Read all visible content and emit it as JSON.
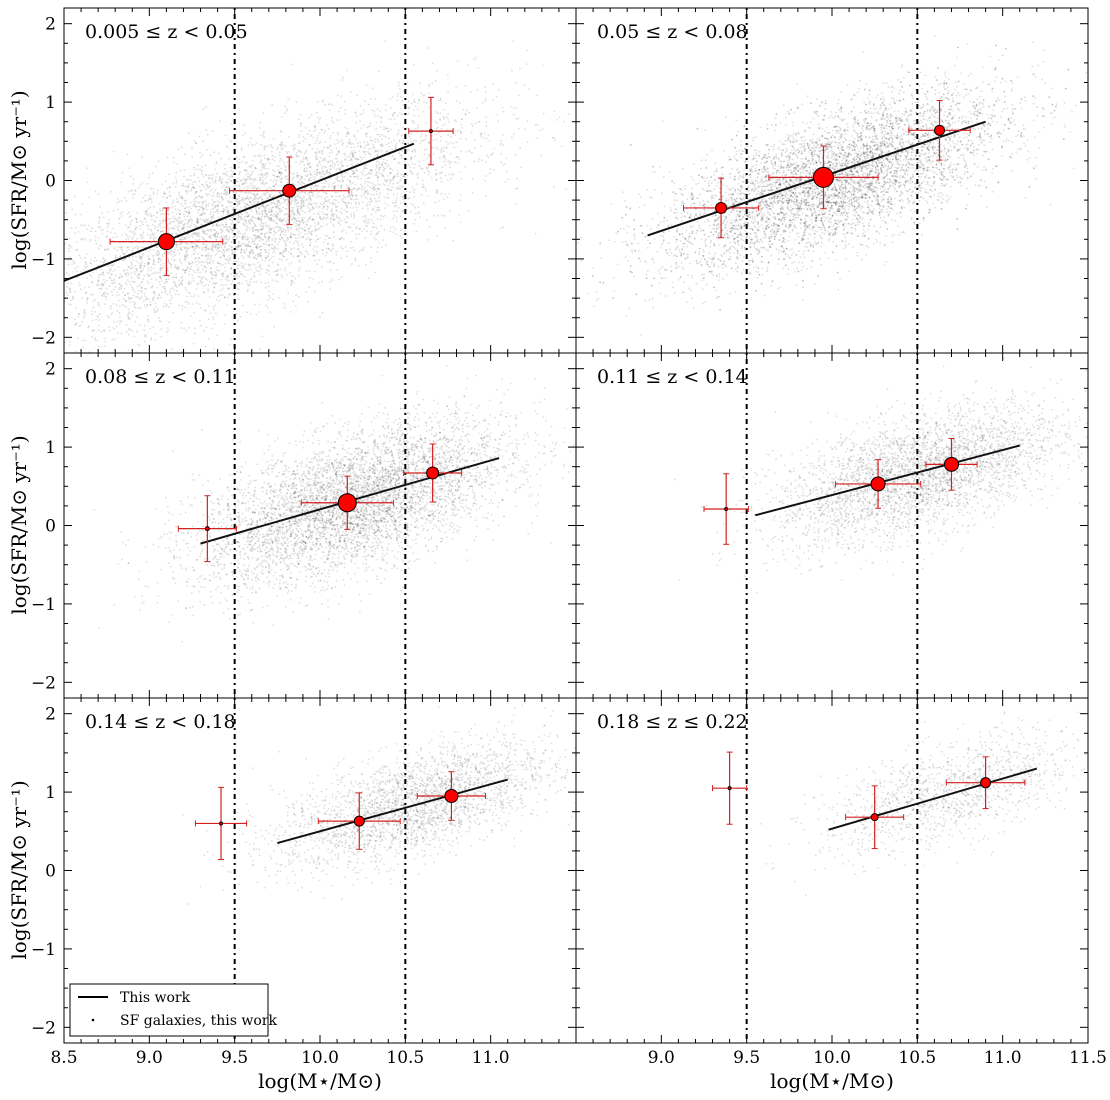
{
  "chart_data": {
    "type": "scatter",
    "x_axis_label": "log(M⋆/M⊙)",
    "y_axis_label": "log(SFR/M⊙ yr⁻¹)",
    "xlim": [
      8.5,
      11.5
    ],
    "ylim": [
      -2.2,
      2.2
    ],
    "x_ticks_left": [
      8.5,
      9.0,
      9.5,
      10.0,
      10.5,
      11.0
    ],
    "x_ticks_right": [
      9.0,
      9.5,
      10.0,
      10.5,
      11.0,
      11.5
    ],
    "y_ticks": [
      -2,
      -1,
      0,
      1,
      2
    ],
    "vertical_dotted_lines": [
      9.5,
      10.5
    ],
    "legend": {
      "placement": "lower-left",
      "entries": [
        {
          "label": "This work",
          "marker": "line"
        },
        {
          "label": "SF galaxies, this work",
          "marker": "dot"
        }
      ]
    },
    "panels": [
      {
        "label": "0.005 ≤ z < 0.05",
        "fit_line": {
          "x": [
            8.5,
            10.55
          ],
          "y": [
            -1.28,
            0.47
          ]
        },
        "cloud": {
          "x_center": 9.6,
          "y_center": -0.5,
          "x_sigma": 0.65,
          "y_sigma": 0.5,
          "slope": 0.8,
          "density": 5200
        },
        "points": [
          {
            "x": 9.1,
            "y": -0.78,
            "xerr": 0.33,
            "yerr": 0.43,
            "size": 8
          },
          {
            "x": 9.82,
            "y": -0.13,
            "xerr": 0.35,
            "yerr": 0.43,
            "size": 6.5
          },
          {
            "x": 10.65,
            "y": 0.63,
            "xerr": 0.13,
            "yerr": 0.43,
            "size": 1.5
          }
        ]
      },
      {
        "label": "0.05 ≤ z < 0.08",
        "fit_line": {
          "x": [
            8.92,
            10.9
          ],
          "y": [
            -0.7,
            0.75
          ]
        },
        "cloud": {
          "x_center": 10.0,
          "y_center": 0.0,
          "x_sigma": 0.5,
          "y_sigma": 0.42,
          "slope": 0.75,
          "density": 6500
        },
        "points": [
          {
            "x": 9.35,
            "y": -0.35,
            "xerr": 0.22,
            "yerr": 0.38,
            "size": 5.5
          },
          {
            "x": 9.95,
            "y": 0.04,
            "xerr": 0.32,
            "yerr": 0.4,
            "size": 10
          },
          {
            "x": 10.63,
            "y": 0.64,
            "xerr": 0.18,
            "yerr": 0.38,
            "size": 5
          }
        ]
      },
      {
        "label": "0.08 ≤ z < 0.11",
        "fit_line": {
          "x": [
            9.3,
            11.05
          ],
          "y": [
            -0.23,
            0.86
          ]
        },
        "cloud": {
          "x_center": 10.2,
          "y_center": 0.3,
          "x_sigma": 0.45,
          "y_sigma": 0.42,
          "slope": 0.65,
          "density": 5500
        },
        "points": [
          {
            "x": 9.34,
            "y": -0.04,
            "xerr": 0.17,
            "yerr": 0.42,
            "size": 2
          },
          {
            "x": 10.16,
            "y": 0.29,
            "xerr": 0.27,
            "yerr": 0.34,
            "size": 9
          },
          {
            "x": 10.66,
            "y": 0.67,
            "xerr": 0.17,
            "yerr": 0.37,
            "size": 6
          }
        ]
      },
      {
        "label": "0.11 ≤ z < 0.14",
        "fit_line": {
          "x": [
            9.55,
            11.1
          ],
          "y": [
            0.13,
            1.02
          ]
        },
        "cloud": {
          "x_center": 10.5,
          "y_center": 0.65,
          "x_sigma": 0.42,
          "y_sigma": 0.36,
          "slope": 0.58,
          "density": 3500
        },
        "points": [
          {
            "x": 9.38,
            "y": 0.21,
            "xerr": 0.13,
            "yerr": 0.45,
            "size": 1.5
          },
          {
            "x": 10.27,
            "y": 0.53,
            "xerr": 0.25,
            "yerr": 0.31,
            "size": 7
          },
          {
            "x": 10.7,
            "y": 0.78,
            "xerr": 0.15,
            "yerr": 0.33,
            "size": 7
          }
        ]
      },
      {
        "label": "0.14 ≤ z < 0.18",
        "fit_line": {
          "x": [
            9.75,
            11.1
          ],
          "y": [
            0.35,
            1.16
          ]
        },
        "cloud": {
          "x_center": 10.55,
          "y_center": 0.85,
          "x_sigma": 0.4,
          "y_sigma": 0.32,
          "slope": 0.6,
          "density": 2600
        },
        "points": [
          {
            "x": 9.42,
            "y": 0.6,
            "xerr": 0.15,
            "yerr": 0.46,
            "size": 1.5
          },
          {
            "x": 10.23,
            "y": 0.63,
            "xerr": 0.24,
            "yerr": 0.36,
            "size": 5
          },
          {
            "x": 10.77,
            "y": 0.95,
            "xerr": 0.2,
            "yerr": 0.31,
            "size": 6.5
          }
        ]
      },
      {
        "label": "0.18 ≤ z ≤ 0.22",
        "fit_line": {
          "x": [
            9.98,
            11.2
          ],
          "y": [
            0.52,
            1.3
          ]
        },
        "cloud": {
          "x_center": 10.7,
          "y_center": 1.0,
          "x_sigma": 0.38,
          "y_sigma": 0.3,
          "slope": 0.6,
          "density": 1300
        },
        "points": [
          {
            "x": 9.4,
            "y": 1.05,
            "xerr": 0.1,
            "yerr": 0.46,
            "size": 1.5
          },
          {
            "x": 10.25,
            "y": 0.68,
            "xerr": 0.17,
            "yerr": 0.4,
            "size": 3.5
          },
          {
            "x": 10.9,
            "y": 1.12,
            "xerr": 0.23,
            "yerr": 0.33,
            "size": 5
          }
        ]
      }
    ]
  }
}
